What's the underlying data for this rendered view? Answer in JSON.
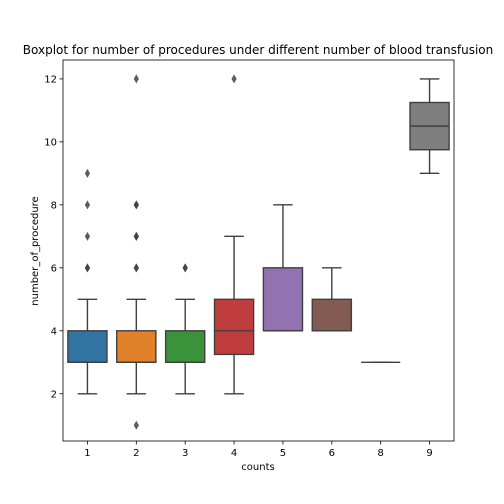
{
  "chart_data": {
    "type": "box",
    "title": "Boxplot for number of procedures under different number of blood transfusion",
    "xlabel": "counts",
    "ylabel": "number_of_procedure",
    "categories": [
      "1",
      "2",
      "3",
      "4",
      "5",
      "6",
      "8",
      "9"
    ],
    "ylim": [
      0.5,
      12.6
    ],
    "yticks": [
      2,
      4,
      6,
      8,
      10,
      12
    ],
    "grid": false,
    "boxes": [
      {
        "category": "1",
        "whisker_low": 2,
        "q1": 3,
        "median": 3,
        "q3": 4,
        "whisker_high": 5,
        "outliers": [
          6,
          6,
          7,
          8,
          9
        ],
        "color": "#3274a1"
      },
      {
        "category": "2",
        "whisker_low": 2,
        "q1": 3,
        "median": 3,
        "q3": 4,
        "whisker_high": 5,
        "outliers": [
          1,
          6,
          6,
          7,
          7,
          8,
          8,
          12
        ],
        "color": "#e1812c"
      },
      {
        "category": "3",
        "whisker_low": 2,
        "q1": 3,
        "median": 3,
        "q3": 4,
        "whisker_high": 5,
        "outliers": [
          6,
          6
        ],
        "color": "#3a923a"
      },
      {
        "category": "4",
        "whisker_low": 2,
        "q1": 3.25,
        "median": 4,
        "q3": 5,
        "whisker_high": 7,
        "outliers": [
          12
        ],
        "color": "#c03d3e"
      },
      {
        "category": "5",
        "whisker_low": 4,
        "q1": 4,
        "median": 4,
        "q3": 6,
        "whisker_high": 8,
        "outliers": [],
        "color": "#9372b2"
      },
      {
        "category": "6",
        "whisker_low": 4,
        "q1": 4,
        "median": 4,
        "q3": 5,
        "whisker_high": 6,
        "outliers": [],
        "color": "#845b53"
      },
      {
        "category": "8",
        "whisker_low": 3,
        "q1": 3,
        "median": 3,
        "q3": 3,
        "whisker_high": 3,
        "outliers": [],
        "color": "#d684bd"
      },
      {
        "category": "9",
        "whisker_low": 9,
        "q1": 9.75,
        "median": 10.5,
        "q3": 11.25,
        "whisker_high": 12,
        "outliers": [],
        "color": "#7f7f7f"
      }
    ]
  }
}
